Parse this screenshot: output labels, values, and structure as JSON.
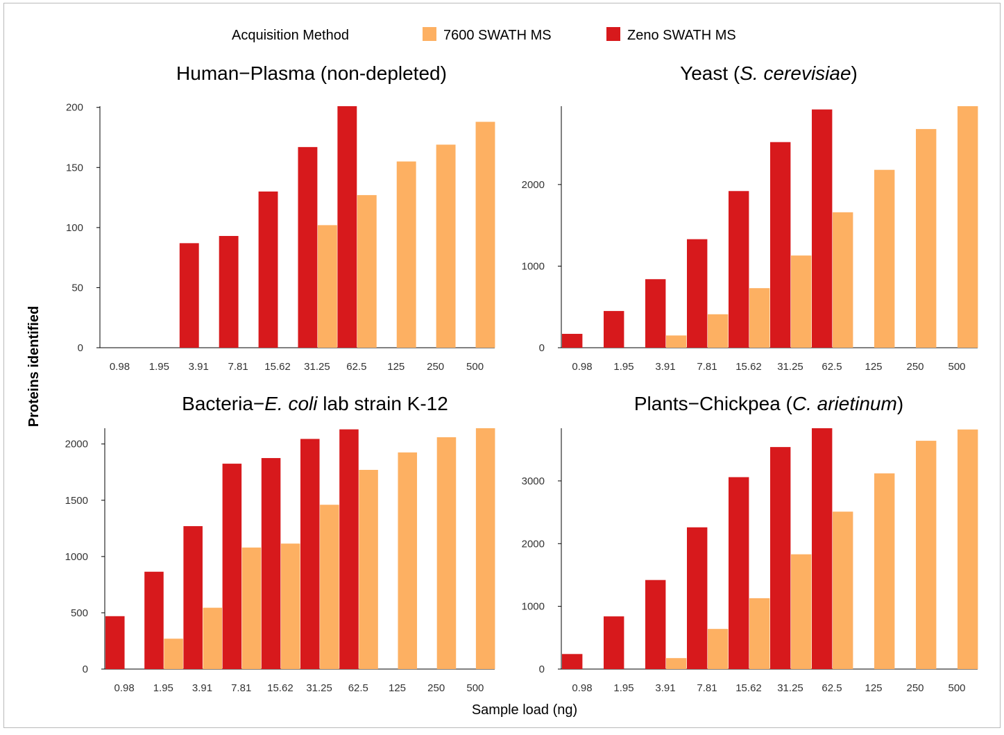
{
  "legend": {
    "title": "Acquisition Method",
    "items": [
      {
        "label": "7600 SWATH MS",
        "color": "#FDB062"
      },
      {
        "label": "Zeno SWATH MS",
        "color": "#D7191C"
      }
    ]
  },
  "axes": {
    "xlabel": "Sample load (ng)",
    "ylabel": "Proteins identified"
  },
  "chart_data": [
    {
      "type": "bar",
      "title": [
        {
          "text": "Human−Plasma (non-depleted)",
          "italic": false
        }
      ],
      "categories": [
        "0.98",
        "1.95",
        "3.91",
        "7.81",
        "15.62",
        "31.25",
        "62.5",
        "125",
        "250",
        "500"
      ],
      "yticks": [
        0,
        50,
        100,
        150,
        200
      ],
      "ylim": [
        0,
        201
      ],
      "series": [
        {
          "name": "7600 SWATH MS",
          "values": [
            null,
            null,
            null,
            null,
            null,
            102,
            127,
            155,
            169,
            188
          ]
        },
        {
          "name": "Zeno SWATH MS",
          "values": [
            null,
            null,
            87,
            93,
            130,
            167,
            201,
            null,
            null,
            null
          ]
        }
      ]
    },
    {
      "type": "bar",
      "title": [
        {
          "text": "Yeast (",
          "italic": false
        },
        {
          "text": "S. cerevisiae",
          "italic": true
        },
        {
          "text": ")",
          "italic": false
        }
      ],
      "categories": [
        "0.98",
        "1.95",
        "3.91",
        "7.81",
        "15.62",
        "31.25",
        "62.5",
        "125",
        "250",
        "500"
      ],
      "yticks": [
        0,
        1000,
        2000
      ],
      "ylim": [
        0,
        2960
      ],
      "series": [
        {
          "name": "7600 SWATH MS",
          "values": [
            null,
            null,
            150,
            410,
            730,
            1130,
            1660,
            2180,
            2680,
            2960
          ]
        },
        {
          "name": "Zeno SWATH MS",
          "values": [
            170,
            450,
            840,
            1330,
            1920,
            2520,
            2920,
            null,
            null,
            null
          ]
        }
      ]
    },
    {
      "type": "bar",
      "title": [
        {
          "text": "Bacteria−",
          "italic": false
        },
        {
          "text": "E. coli",
          "italic": true
        },
        {
          "text": " lab strain K-12",
          "italic": false
        }
      ],
      "categories": [
        "0.98",
        "1.95",
        "3.91",
        "7.81",
        "15.62",
        "31.25",
        "62.5",
        "125",
        "250",
        "500"
      ],
      "yticks": [
        0,
        500,
        1000,
        1500,
        2000
      ],
      "ylim": [
        0,
        2140
      ],
      "series": [
        {
          "name": "7600 SWATH MS",
          "values": [
            null,
            270,
            545,
            1080,
            1115,
            1460,
            1770,
            1925,
            2060,
            2140
          ]
        },
        {
          "name": "Zeno SWATH MS",
          "values": [
            470,
            865,
            1270,
            1825,
            1875,
            2045,
            2130,
            null,
            null,
            null
          ]
        }
      ]
    },
    {
      "type": "bar",
      "title": [
        {
          "text": "Plants−Chickpea (",
          "italic": false
        },
        {
          "text": "C. arietinum",
          "italic": true
        },
        {
          "text": ")",
          "italic": false
        }
      ],
      "categories": [
        "0.98",
        "1.95",
        "3.91",
        "7.81",
        "15.62",
        "31.25",
        "62.5",
        "125",
        "250",
        "500"
      ],
      "yticks": [
        0,
        1000,
        2000,
        3000
      ],
      "ylim": [
        0,
        3840
      ],
      "series": [
        {
          "name": "7600 SWATH MS",
          "values": [
            null,
            null,
            175,
            640,
            1130,
            1830,
            2510,
            3120,
            3640,
            3820
          ]
        },
        {
          "name": "Zeno SWATH MS",
          "values": [
            240,
            840,
            1420,
            2260,
            3060,
            3540,
            3840,
            null,
            null,
            null
          ]
        }
      ]
    }
  ]
}
